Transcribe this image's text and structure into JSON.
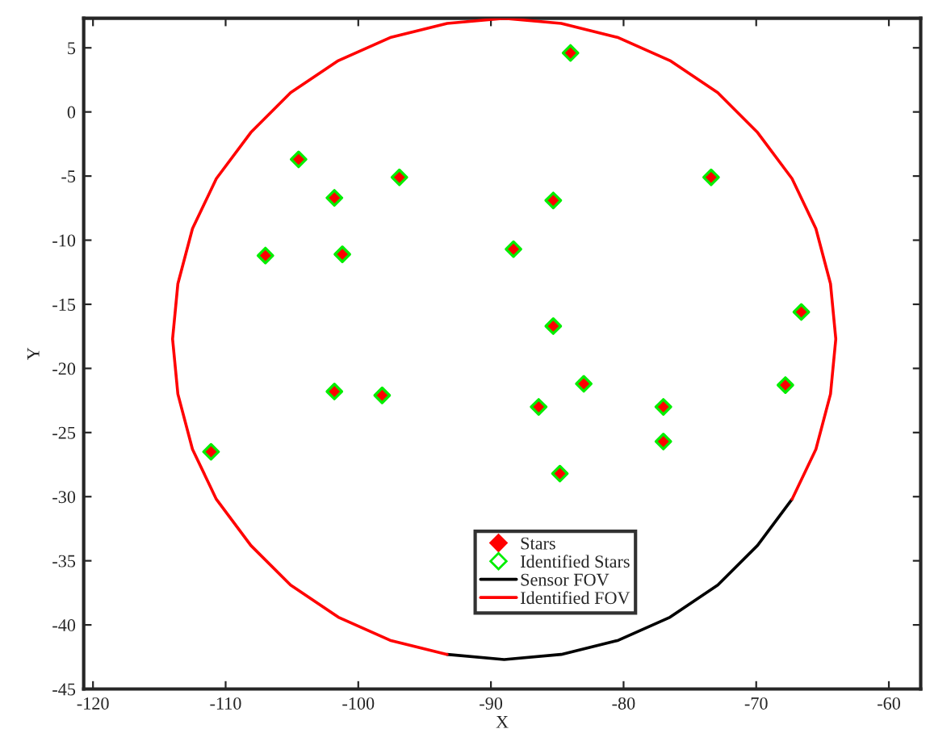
{
  "chart_data": {
    "type": "scatter",
    "xlabel": "X",
    "ylabel": "Y",
    "xlim": [
      -120.7,
      -57.6
    ],
    "xticks": [
      -120,
      -110,
      -100,
      -90,
      -80,
      -70,
      -60
    ],
    "ylim": [
      -45,
      7.3
    ],
    "yticks": [
      -45,
      -40,
      -35,
      -30,
      -25,
      -20,
      -15,
      -10,
      -5,
      0,
      5
    ],
    "grid": false,
    "legend": "bottom right",
    "x": [
      -84.0,
      -104.5,
      -96.9,
      -101.8,
      -85.3,
      -73.4,
      -107.0,
      -101.2,
      -88.3,
      -85.3,
      -66.6,
      -83.0,
      -101.8,
      -98.2,
      -86.4,
      -77.0,
      -67.8,
      -111.1,
      -77.0,
      -84.8
    ],
    "series": [
      {
        "name": "Stars",
        "marker": "diamond",
        "color": "#ff0000",
        "values": [
          4.6,
          -3.7,
          -5.1,
          -6.7,
          -6.9,
          -5.1,
          -11.2,
          -11.1,
          -10.7,
          -16.7,
          -15.6,
          -21.2,
          -21.8,
          -22.1,
          -23.0,
          -23.0,
          -21.3,
          -26.5,
          -25.7,
          -28.2
        ]
      },
      {
        "name": "Identified Stars",
        "marker": "diamond",
        "color": "#00ee00",
        "values": [
          4.6,
          -3.7,
          -5.1,
          -6.7,
          -6.9,
          -5.1,
          -11.2,
          -11.1,
          -10.7,
          -16.7,
          -15.6,
          -21.2,
          -21.8,
          -22.1,
          -23.0,
          -23.0,
          -21.3,
          -26.5,
          -25.7,
          -28.2
        ]
      },
      {
        "name": "Sensor FOV",
        "type": "line",
        "marker": "none",
        "line_style": "solid",
        "color": "#000000",
        "x": [
          -93.3,
          -89.0,
          -84.7,
          -80.4,
          -76.5,
          -72.9,
          -69.9,
          -67.3
        ],
        "values": [
          -42.3,
          -42.7,
          -42.3,
          -41.2,
          -39.4,
          -36.9,
          -33.8,
          -30.2
        ]
      },
      {
        "name": "Identified FOV",
        "type": "line",
        "marker": "none",
        "line_style": "solid",
        "color": "#ff0000",
        "x": [
          -64.0,
          -64.4,
          -65.5,
          -67.3,
          -69.9,
          -72.9,
          -76.5,
          -80.4,
          -84.7,
          -89.0,
          -93.3,
          -97.6,
          -101.5,
          -105.1,
          -108.1,
          -110.7,
          -112.5,
          -113.6,
          -114.0,
          -113.6,
          -112.5,
          -110.7,
          -108.1,
          -105.1,
          -101.5,
          -97.6,
          -93.3,
          -89.0,
          -84.7,
          -80.4,
          -76.5,
          -72.9,
          -69.9,
          -67.3,
          -65.5,
          -64.4,
          -64.0
        ],
        "values": [
          -17.7,
          -13.4,
          -9.1,
          -5.2,
          -1.6,
          1.5,
          4.0,
          5.8,
          6.9,
          7.3,
          6.9,
          5.8,
          4.0,
          1.5,
          -1.6,
          -5.2,
          -9.1,
          -13.4,
          -17.7,
          -22.0,
          -26.3,
          -30.2,
          -33.8,
          -36.9,
          -39.4,
          -41.2,
          -42.3,
          null,
          null,
          null,
          null,
          null,
          null,
          -30.2,
          -26.3,
          -22.0,
          -17.7
        ]
      }
    ]
  }
}
